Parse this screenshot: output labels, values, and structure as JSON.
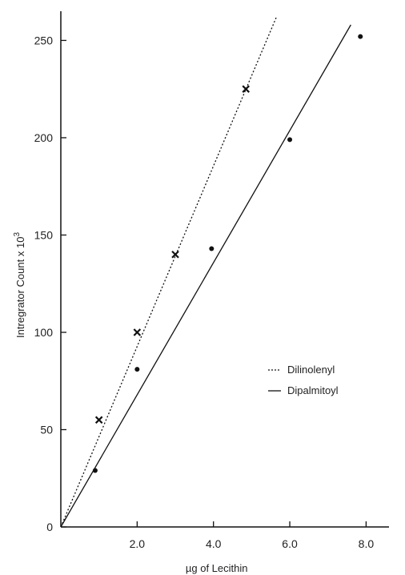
{
  "chart_data": {
    "type": "scatter",
    "title": "",
    "xlabel": "µg of Lecithin",
    "ylabel": "Intregrator Count x 10",
    "ylabel_superscript": "3",
    "xlim": [
      0,
      8.6
    ],
    "ylim": [
      0,
      265
    ],
    "x_ticks": [
      2.0,
      4.0,
      6.0,
      8.0
    ],
    "x_tick_labels": [
      "2.0",
      "4.0",
      "6.0",
      "8.0"
    ],
    "y_ticks": [
      0,
      50,
      100,
      150,
      200,
      250
    ],
    "y_tick_labels": [
      "0",
      "50",
      "100",
      "150",
      "200",
      "250"
    ],
    "grid": false,
    "legend_position": "right",
    "series": [
      {
        "name": "Dilinolenyl",
        "marker": "x",
        "line_style": "dotted",
        "points": [
          {
            "x": 1.0,
            "y": 55
          },
          {
            "x": 2.0,
            "y": 100
          },
          {
            "x": 3.0,
            "y": 140
          },
          {
            "x": 4.85,
            "y": 225
          }
        ],
        "fit_line": {
          "x": [
            0,
            5.65
          ],
          "y": [
            0,
            262
          ]
        }
      },
      {
        "name": "Dipalmitoyl",
        "marker": "dot",
        "line_style": "solid",
        "points": [
          {
            "x": 0.9,
            "y": 29
          },
          {
            "x": 2.0,
            "y": 81
          },
          {
            "x": 3.95,
            "y": 143
          },
          {
            "x": 6.0,
            "y": 199
          },
          {
            "x": 7.85,
            "y": 252
          }
        ],
        "fit_line": {
          "x": [
            0,
            7.6
          ],
          "y": [
            0,
            258
          ]
        }
      }
    ]
  }
}
